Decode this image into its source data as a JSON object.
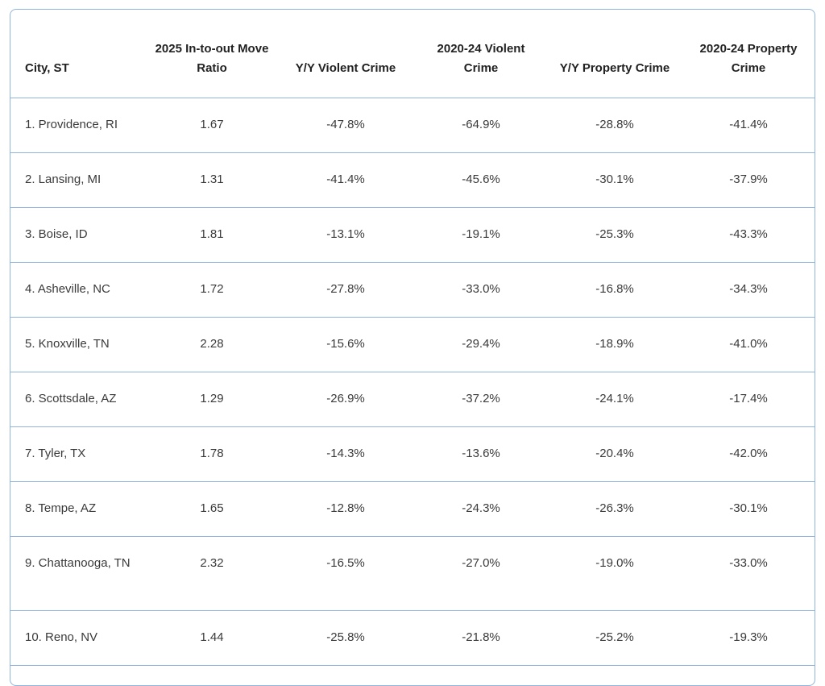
{
  "table": {
    "headers": [
      "City, ST",
      "2025 In-to-out Move Ratio",
      "Y/Y Violent Crime",
      "2020-24 Violent Crime",
      "Y/Y Property Crime",
      "2020-24 Property Crime"
    ],
    "rows": [
      [
        "1. Providence, RI",
        "1.67",
        "-47.8%",
        "-64.9%",
        "-28.8%",
        "-41.4%"
      ],
      [
        "2. Lansing, MI",
        "1.31",
        "-41.4%",
        "-45.6%",
        "-30.1%",
        "-37.9%"
      ],
      [
        "3. Boise, ID",
        "1.81",
        "-13.1%",
        "-19.1%",
        "-25.3%",
        "-43.3%"
      ],
      [
        "4. Asheville, NC",
        "1.72",
        "-27.8%",
        "-33.0%",
        "-16.8%",
        "-34.3%"
      ],
      [
        "5. Knoxville, TN",
        "2.28",
        "-15.6%",
        "-29.4%",
        "-18.9%",
        "-41.0%"
      ],
      [
        "6. Scottsdale, AZ",
        "1.29",
        "-26.9%",
        "-37.2%",
        "-24.1%",
        "-17.4%"
      ],
      [
        "7. Tyler, TX",
        "1.78",
        "-14.3%",
        "-13.6%",
        "-20.4%",
        "-42.0%"
      ],
      [
        "8. Tempe, AZ",
        "1.65",
        "-12.8%",
        "-24.3%",
        "-26.3%",
        "-30.1%"
      ],
      [
        "9. Chattanooga, TN",
        "2.32",
        "-16.5%",
        "-27.0%",
        "-19.0%",
        "-33.0%"
      ],
      [
        "10. Reno, NV",
        "1.44",
        "-25.8%",
        "-21.8%",
        "-25.2%",
        "-19.3%"
      ]
    ]
  }
}
